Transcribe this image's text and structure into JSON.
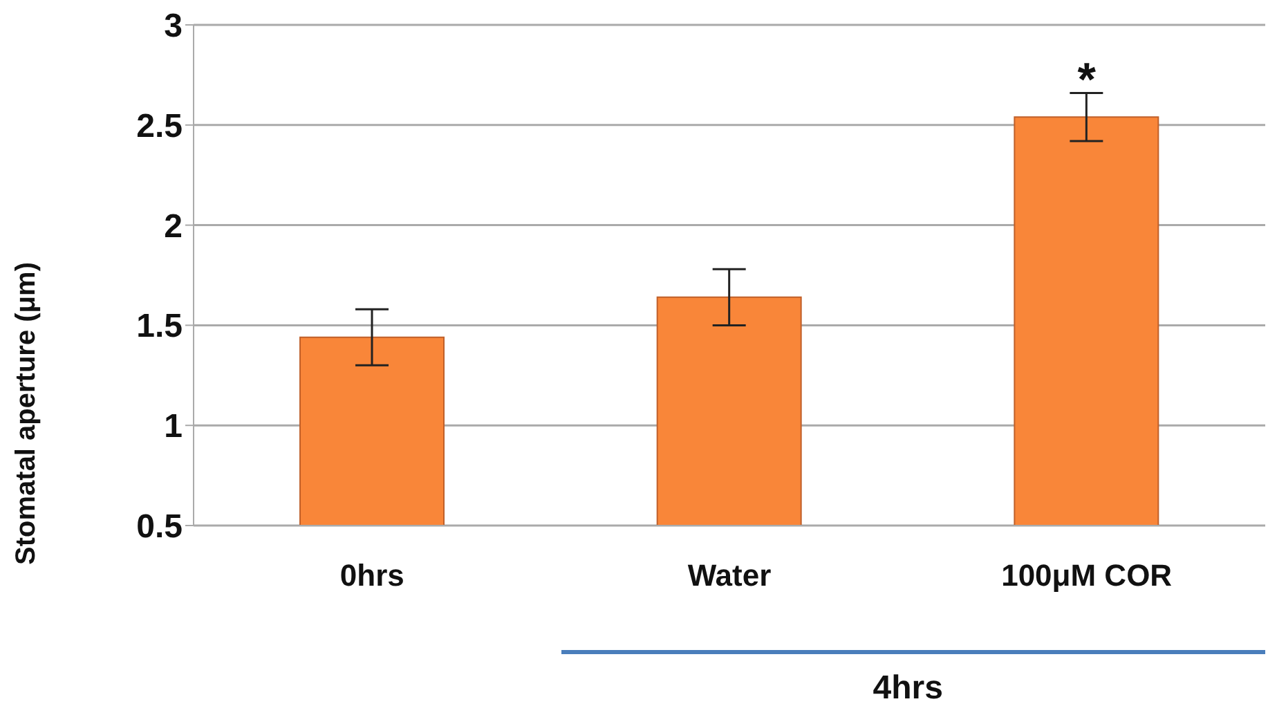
{
  "chart_data": {
    "type": "bar",
    "ylabel": "Stomatal aperture (μm)",
    "categories": [
      "0hrs",
      "Water",
      "100μM COR"
    ],
    "values": [
      1.44,
      1.64,
      2.54
    ],
    "errors": [
      0.14,
      0.14,
      0.12
    ],
    "color": "#f98639",
    "ylim": [
      0.5,
      3
    ],
    "yticks": [
      0.5,
      1,
      1.5,
      2,
      2.5,
      3
    ],
    "grid": "y",
    "annotations": [
      {
        "text": "*",
        "x": "100μM COR",
        "y": 2.66
      },
      "4hrs"
    ]
  }
}
